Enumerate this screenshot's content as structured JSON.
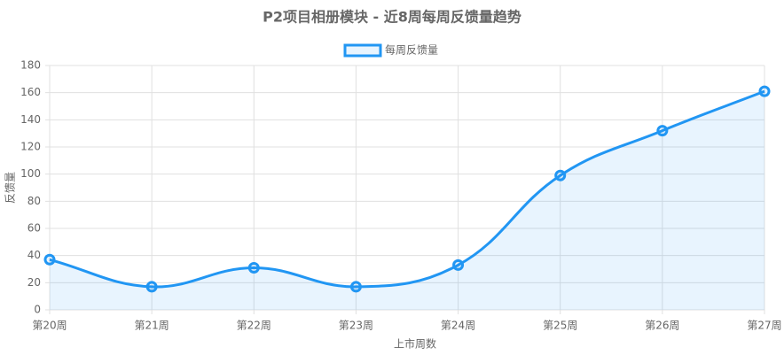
{
  "chart_data": {
    "type": "line",
    "title": "P2项目相册模块 - 近8周每周反馈量趋势",
    "x_label": "上市周数",
    "y_label": "反馈量",
    "categories": [
      "第20周",
      "第21周",
      "第22周",
      "第23周",
      "第24周",
      "第25周",
      "第26周",
      "第27周"
    ],
    "series": [
      {
        "name": "每周反馈量",
        "color": "#2196f3",
        "values": [
          37,
          17,
          31,
          17,
          33,
          99,
          132,
          161
        ]
      }
    ],
    "ylim": [
      0,
      180
    ],
    "yticks": [
      0,
      20,
      40,
      60,
      80,
      100,
      120,
      140,
      160,
      180
    ],
    "grid": true,
    "fill": true,
    "legend": "top"
  }
}
